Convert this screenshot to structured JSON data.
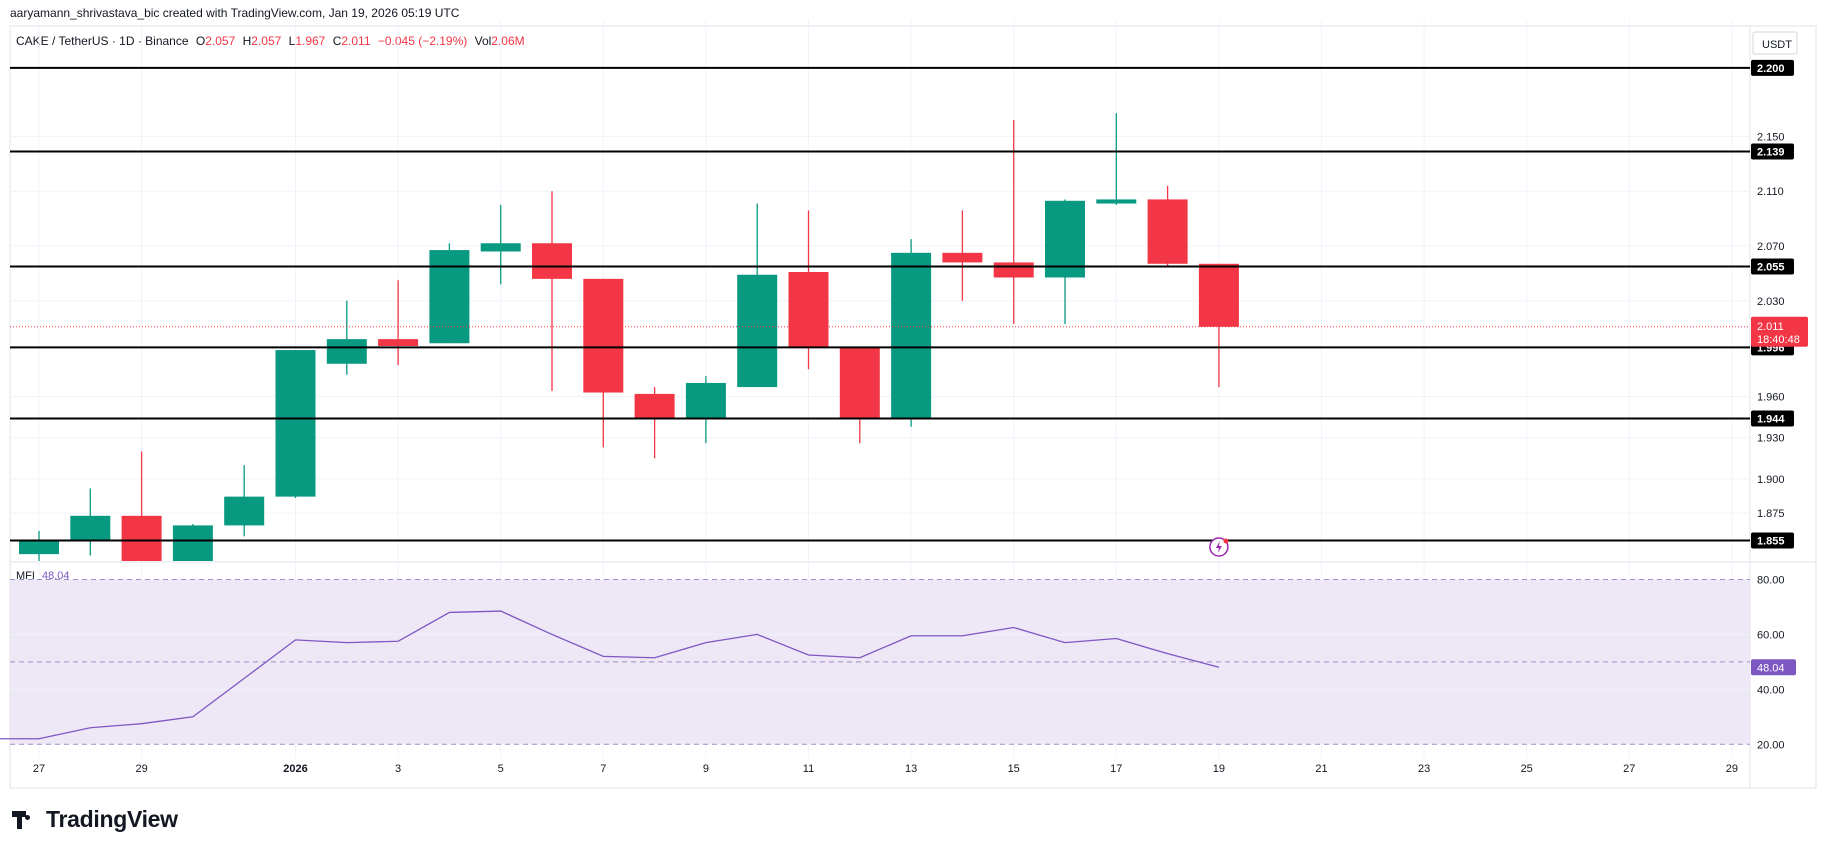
{
  "attribution": "aaryamann_shrivastava_bic created with TradingView.com, Jan 19, 2026 05:19 UTC",
  "header": {
    "symbol": "CAKE / TetherUS · 1D · Binance",
    "o_label": "O",
    "o_value": "2.057",
    "h_label": "H",
    "h_value": "2.057",
    "l_label": "L",
    "l_value": "1.967",
    "c_label": "C",
    "c_value": "2.011",
    "change": "−0.045 (−2.19%)",
    "vol_label": "Vol",
    "vol_value": "2.06M"
  },
  "currency_label": "USDT",
  "logo_text": "TradingView",
  "colors": {
    "up": "#089981",
    "down": "#f23645",
    "mfi_line": "#7e57c2",
    "mfi_band": "#ede7f6",
    "level_line": "#000000"
  },
  "chart_data": [
    {
      "type": "candlestick",
      "title": "CAKE / TetherUS · 1D · Binance",
      "ylim": [
        1.84,
        2.235
      ],
      "y_ticks": [
        "2.150",
        "2.110",
        "2.070",
        "2.030",
        "1.960",
        "1.930",
        "1.900",
        "1.875"
      ],
      "x_ticks": [
        {
          "label": "27",
          "date": "2025-12-27"
        },
        {
          "label": "29",
          "date": "2025-12-29"
        },
        {
          "label": "2026",
          "date": "2026-01-01"
        },
        {
          "label": "3",
          "date": "2026-01-03"
        },
        {
          "label": "5",
          "date": "2026-01-05"
        },
        {
          "label": "7",
          "date": "2026-01-07"
        },
        {
          "label": "9",
          "date": "2026-01-09"
        },
        {
          "label": "11",
          "date": "2026-01-11"
        },
        {
          "label": "13",
          "date": "2026-01-13"
        },
        {
          "label": "15",
          "date": "2026-01-15"
        },
        {
          "label": "17",
          "date": "2026-01-17"
        },
        {
          "label": "19",
          "date": "2026-01-19"
        },
        {
          "label": "21",
          "date": "2026-01-21"
        },
        {
          "label": "23",
          "date": "2026-01-23"
        },
        {
          "label": "25",
          "date": "2026-01-25"
        },
        {
          "label": "27",
          "date": "2026-01-27"
        },
        {
          "label": "29",
          "date": "2026-01-29"
        }
      ],
      "candles": [
        {
          "date": "2025-12-27",
          "o": 1.845,
          "h": 1.862,
          "l": 1.84,
          "c": 1.855
        },
        {
          "date": "2025-12-28",
          "o": 1.855,
          "h": 1.893,
          "l": 1.844,
          "c": 1.873
        },
        {
          "date": "2025-12-29",
          "o": 1.873,
          "h": 1.92,
          "l": 1.84,
          "c": 1.84
        },
        {
          "date": "2025-12-30",
          "o": 1.84,
          "h": 1.867,
          "l": 1.84,
          "c": 1.866
        },
        {
          "date": "2025-12-31",
          "o": 1.866,
          "h": 1.91,
          "l": 1.858,
          "c": 1.887
        },
        {
          "date": "2026-01-01",
          "o": 1.887,
          "h": 1.994,
          "l": 1.886,
          "c": 1.994
        },
        {
          "date": "2026-01-02",
          "o": 1.984,
          "h": 2.03,
          "l": 1.976,
          "c": 2.002
        },
        {
          "date": "2026-01-03",
          "o": 2.002,
          "h": 2.045,
          "l": 1.983,
          "c": 1.997
        },
        {
          "date": "2026-01-04",
          "o": 1.999,
          "h": 2.072,
          "l": 1.999,
          "c": 2.067
        },
        {
          "date": "2026-01-05",
          "o": 2.066,
          "h": 2.1,
          "l": 2.042,
          "c": 2.072
        },
        {
          "date": "2026-01-06",
          "o": 2.072,
          "h": 2.11,
          "l": 1.964,
          "c": 2.046
        },
        {
          "date": "2026-01-07",
          "o": 2.046,
          "h": 2.046,
          "l": 1.923,
          "c": 1.963
        },
        {
          "date": "2026-01-08",
          "o": 1.962,
          "h": 1.967,
          "l": 1.915,
          "c": 1.944
        },
        {
          "date": "2026-01-09",
          "o": 1.944,
          "h": 1.975,
          "l": 1.926,
          "c": 1.97
        },
        {
          "date": "2026-01-10",
          "o": 1.967,
          "h": 2.101,
          "l": 1.967,
          "c": 2.049
        },
        {
          "date": "2026-01-11",
          "o": 2.051,
          "h": 2.096,
          "l": 1.98,
          "c": 1.996
        },
        {
          "date": "2026-01-12",
          "o": 1.996,
          "h": 1.996,
          "l": 1.926,
          "c": 1.944
        },
        {
          "date": "2026-01-13",
          "o": 1.944,
          "h": 2.075,
          "l": 1.938,
          "c": 2.065
        },
        {
          "date": "2026-01-14",
          "o": 2.065,
          "h": 2.096,
          "l": 2.03,
          "c": 2.058
        },
        {
          "date": "2026-01-15",
          "o": 2.058,
          "h": 2.162,
          "l": 2.013,
          "c": 2.047
        },
        {
          "date": "2026-01-16",
          "o": 2.047,
          "h": 2.104,
          "l": 2.013,
          "c": 2.103
        },
        {
          "date": "2026-01-17",
          "o": 2.101,
          "h": 2.167,
          "l": 2.1,
          "c": 2.104
        },
        {
          "date": "2026-01-18",
          "o": 2.104,
          "h": 2.114,
          "l": 2.055,
          "c": 2.057
        },
        {
          "date": "2026-01-19",
          "o": 2.057,
          "h": 2.057,
          "l": 1.967,
          "c": 2.011
        }
      ],
      "horizontal_levels": [
        {
          "value": 2.2,
          "label": "2.200"
        },
        {
          "value": 2.139,
          "label": "2.139"
        },
        {
          "value": 2.055,
          "label": "2.055"
        },
        {
          "value": 1.996,
          "label": "1.996"
        },
        {
          "value": 1.944,
          "label": "1.944"
        },
        {
          "value": 1.855,
          "label": "1.855"
        }
      ],
      "last_price": {
        "value": 2.011,
        "label": "2.011",
        "countdown": "18:40:48"
      }
    },
    {
      "type": "line",
      "title": "MFI",
      "value_label": "48.04",
      "ylim": [
        15,
        86
      ],
      "y_ticks": [
        "80.00",
        "60.00",
        "40.00",
        "20.00"
      ],
      "band": [
        20,
        80
      ],
      "midline": 50,
      "series": [
        {
          "name": "MFI",
          "x": [
            "2025-12-26",
            "2025-12-27",
            "2025-12-28",
            "2025-12-29",
            "2025-12-30",
            "2025-12-31",
            "2026-01-01",
            "2026-01-02",
            "2026-01-03",
            "2026-01-04",
            "2026-01-05",
            "2026-01-06",
            "2026-01-07",
            "2026-01-08",
            "2026-01-09",
            "2026-01-10",
            "2026-01-11",
            "2026-01-12",
            "2026-01-13",
            "2026-01-14",
            "2026-01-15",
            "2026-01-16",
            "2026-01-17",
            "2026-01-18",
            "2026-01-19"
          ],
          "values": [
            22,
            22,
            26,
            27.5,
            30,
            44,
            58,
            57,
            57.5,
            68,
            68.5,
            60,
            52,
            51.5,
            57,
            60,
            52.5,
            51.5,
            59.5,
            59.5,
            62.5,
            57,
            58.5,
            53,
            48.04
          ]
        }
      ]
    }
  ]
}
